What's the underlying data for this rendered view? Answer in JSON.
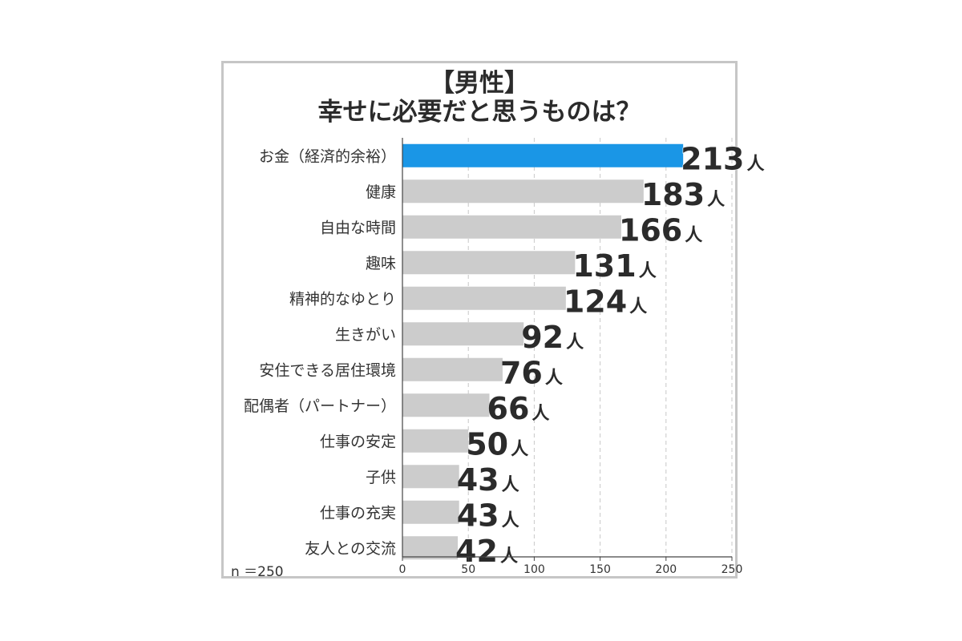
{
  "chart_data": {
    "type": "bar",
    "orientation": "horizontal",
    "title": "【男性】",
    "subtitle": "幸せに必要だと思うものは？",
    "categories": [
      "お金（経済的余裕）",
      "健康",
      "自由な時間",
      "趣味",
      "精神的なゆとり",
      "生きがい",
      "安住できる居住環境",
      "配偶者（パートナー）",
      "仕事の安定",
      "子供",
      "仕事の充実",
      "友人との交流"
    ],
    "values": [
      213,
      183,
      166,
      131,
      124,
      92,
      76,
      66,
      50,
      43,
      43,
      42
    ],
    "value_unit": "人",
    "xlim": [
      0,
      250
    ],
    "xticks": [
      0,
      50,
      100,
      150,
      200,
      250
    ],
    "grid": "vertical-dashed",
    "highlight_index": 0,
    "colors": {
      "highlight": "#1a96e6",
      "bar": "#cccccc",
      "highlight_label": "#1a74b8",
      "label": "#2b2b2b"
    },
    "note": "n ＝250"
  }
}
